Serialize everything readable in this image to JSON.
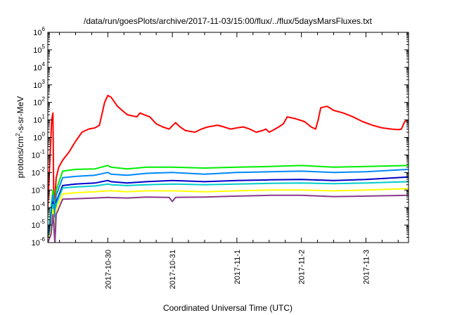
{
  "chart_data": {
    "type": "line",
    "title": "/data/run/goesPlots/archive/2017-11-03/15:00/flux/../flux/5daysMarsFluxes.txt",
    "xlabel": "Coordinated Universal Time (UTC)",
    "ylabel": {
      "prefix": "protons/cm",
      "sup": "2",
      "suffix": "-s-sr-MeV"
    },
    "yscale": "log",
    "ylim_exp": [
      -6,
      6
    ],
    "xlim_days": [
      -0.93,
      4.66
    ],
    "y_ticks": [
      {
        "base": "10",
        "exp": "-6"
      },
      {
        "base": "10",
        "exp": "-5"
      },
      {
        "base": "10",
        "exp": "-4"
      },
      {
        "base": "10",
        "exp": "-3"
      },
      {
        "base": "10",
        "exp": "-2"
      },
      {
        "base": "10",
        "exp": "-1"
      },
      {
        "base": "10",
        "exp": "0"
      },
      {
        "base": "10",
        "exp": "1"
      },
      {
        "base": "10",
        "exp": "2"
      },
      {
        "base": "10",
        "exp": "3"
      },
      {
        "base": "10",
        "exp": "4"
      },
      {
        "base": "10",
        "exp": "5"
      },
      {
        "base": "10",
        "exp": "6"
      }
    ],
    "x_ticks": [
      "2017-10-30",
      "2017-10-31",
      "2017-11-1",
      "2017-11-2",
      "2017-11-3"
    ],
    "grid": false,
    "legend": "none",
    "series": [
      {
        "color": "#ff0000",
        "x": [
          -0.93,
          -0.87,
          -0.85,
          -0.84,
          -0.83,
          -0.8,
          -0.76,
          -0.7,
          -0.6,
          -0.5,
          -0.4,
          -0.3,
          -0.2,
          -0.13,
          -0.05,
          0.0,
          0.05,
          0.15,
          0.3,
          0.45,
          0.5,
          0.56,
          0.65,
          0.75,
          0.85,
          0.95,
          1.05,
          1.12,
          1.2,
          1.35,
          1.45,
          1.55,
          1.7,
          1.8,
          1.9,
          2.0,
          2.1,
          2.2,
          2.3,
          2.4,
          2.45,
          2.5,
          2.55,
          2.65,
          2.72,
          2.78,
          2.9,
          3.05,
          3.15,
          3.22,
          3.26,
          3.3,
          3.4,
          3.5,
          3.65,
          3.8,
          3.95,
          4.1,
          4.25,
          4.4,
          4.5,
          4.55,
          4.6,
          4.66
        ],
        "y": [
          0.0001,
          10,
          25,
          0.001,
          0.0001,
          0.005,
          0.02,
          0.05,
          0.15,
          0.6,
          2,
          3,
          3.5,
          5,
          100,
          250,
          200,
          60,
          20,
          15,
          25,
          20,
          15,
          6,
          4,
          3,
          7,
          4,
          2.5,
          2,
          3,
          4,
          5,
          4,
          3,
          3.5,
          4,
          3,
          2,
          2.5,
          3,
          2,
          2.5,
          4,
          6,
          15,
          12,
          8,
          4,
          3,
          10,
          50,
          60,
          35,
          25,
          15,
          8,
          5,
          3.5,
          3,
          2.8,
          3,
          8,
          10
        ]
      },
      {
        "color": "#00ee00",
        "x": [
          -0.93,
          -0.88,
          -0.85,
          -0.82,
          -0.8,
          -0.7,
          -0.5,
          -0.2,
          0.0,
          0.05,
          0.3,
          0.6,
          1.0,
          1.5,
          2.0,
          2.5,
          3.0,
          3.5,
          4.0,
          4.66
        ],
        "y": [
          1e-06,
          0.0001,
          0.001,
          5e-05,
          0.001,
          0.012,
          0.015,
          0.016,
          0.025,
          0.02,
          0.016,
          0.02,
          0.02,
          0.018,
          0.02,
          0.022,
          0.025,
          0.02,
          0.022,
          0.025
        ]
      },
      {
        "color": "#0088ff",
        "x": [
          -0.93,
          -0.88,
          -0.85,
          -0.82,
          -0.8,
          -0.7,
          -0.5,
          -0.2,
          0.0,
          0.05,
          0.3,
          0.6,
          1.0,
          1.5,
          2.0,
          2.5,
          3.0,
          3.5,
          4.0,
          4.66
        ],
        "y": [
          1e-06,
          5e-05,
          0.0005,
          3e-05,
          0.0005,
          0.005,
          0.006,
          0.007,
          0.01,
          0.008,
          0.007,
          0.009,
          0.01,
          0.008,
          0.01,
          0.011,
          0.012,
          0.01,
          0.011,
          0.015
        ]
      },
      {
        "color": "#0000cc",
        "x": [
          -0.93,
          -0.88,
          -0.85,
          -0.82,
          -0.8,
          -0.7,
          -0.5,
          -0.2,
          0.0,
          0.05,
          0.3,
          0.6,
          1.0,
          1.5,
          2.0,
          2.5,
          3.0,
          3.5,
          4.0,
          4.66
        ],
        "y": [
          1e-06,
          2e-05,
          0.0002,
          1e-06,
          0.0002,
          0.0018,
          0.0022,
          0.0025,
          0.0035,
          0.003,
          0.0025,
          0.003,
          0.0035,
          0.003,
          0.0035,
          0.0038,
          0.004,
          0.0035,
          0.004,
          0.0055
        ]
      },
      {
        "color": "#00cccc",
        "x": [
          -0.93,
          -0.88,
          -0.85,
          -0.82,
          -0.8,
          -0.7,
          -0.5,
          -0.2,
          0.0,
          0.05,
          0.3,
          0.6,
          1.0,
          1.5,
          2.0,
          2.5,
          3.0,
          3.5,
          4.0,
          4.66
        ],
        "y": [
          1e-06,
          1e-05,
          0.00015,
          1e-06,
          0.00015,
          0.0013,
          0.0015,
          0.0017,
          0.0022,
          0.002,
          0.0018,
          0.002,
          0.0022,
          0.002,
          0.0022,
          0.0024,
          0.0025,
          0.0023,
          0.0025,
          0.003
        ]
      },
      {
        "color": "#ffff00",
        "x": [
          -0.93,
          -0.88,
          -0.85,
          -0.82,
          -0.8,
          -0.7,
          -0.5,
          -0.2,
          0.0,
          0.05,
          0.3,
          0.6,
          1.0,
          1.5,
          2.0,
          2.5,
          3.0,
          3.5,
          4.0,
          4.66
        ],
        "y": [
          1e-06,
          5e-06,
          8e-05,
          1e-06,
          8e-05,
          0.0006,
          0.0007,
          0.0008,
          0.0009,
          0.0009,
          0.0008,
          0.0009,
          0.0009,
          0.0008,
          0.0009,
          0.001,
          0.001,
          0.0009,
          0.001,
          0.0012
        ]
      },
      {
        "color": "#8b3a8b",
        "x": [
          -0.93,
          -0.88,
          -0.85,
          -0.82,
          -0.8,
          -0.7,
          -0.5,
          -0.2,
          0.0,
          0.05,
          0.3,
          0.6,
          0.95,
          1.0,
          1.05,
          1.5,
          2.0,
          2.5,
          3.0,
          3.5,
          4.0,
          4.66
        ],
        "y": [
          1e-06,
          3e-06,
          4e-05,
          1e-06,
          4e-05,
          0.0003,
          0.00032,
          0.00035,
          0.00038,
          0.00037,
          0.00035,
          0.0004,
          0.00038,
          0.00022,
          0.00038,
          0.0004,
          0.00045,
          0.0005,
          0.0005,
          0.00042,
          0.00045,
          0.0005
        ]
      }
    ]
  }
}
